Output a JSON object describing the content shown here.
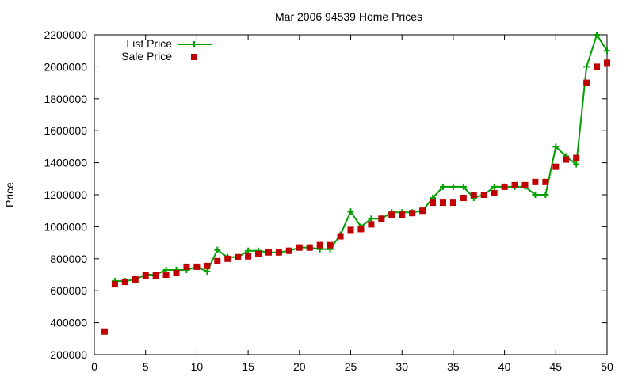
{
  "chart_data": {
    "type": "line",
    "title": "Mar 2006 94539 Home Prices",
    "xlabel": "",
    "ylabel": "Price",
    "xlim": [
      0,
      50
    ],
    "ylim": [
      200000,
      2200000
    ],
    "xticks": [
      0,
      5,
      10,
      15,
      20,
      25,
      30,
      35,
      40,
      45,
      50
    ],
    "yticks": [
      200000,
      400000,
      600000,
      800000,
      1000000,
      1200000,
      1400000,
      1600000,
      1800000,
      2000000,
      2200000
    ],
    "grid": false,
    "legend_position": "top-left",
    "series": [
      {
        "name": "List Price",
        "style": "line-with-plus-markers",
        "color": "#00a000",
        "x": [
          2,
          3,
          4,
          5,
          6,
          7,
          8,
          9,
          10,
          11,
          12,
          13,
          14,
          15,
          16,
          17,
          18,
          19,
          20,
          21,
          22,
          23,
          24,
          25,
          26,
          27,
          28,
          29,
          30,
          31,
          32,
          33,
          34,
          35,
          36,
          37,
          38,
          39,
          40,
          41,
          42,
          43,
          44,
          45,
          46,
          47,
          48,
          49,
          50
        ],
        "values": [
          660000,
          660000,
          670000,
          700000,
          700000,
          730000,
          730000,
          730000,
          750000,
          720000,
          855000,
          810000,
          810000,
          850000,
          850000,
          840000,
          840000,
          850000,
          870000,
          870000,
          860000,
          860000,
          950000,
          1095000,
          1000000,
          1050000,
          1050000,
          1090000,
          1090000,
          1090000,
          1100000,
          1180000,
          1250000,
          1250000,
          1250000,
          1180000,
          1200000,
          1250000,
          1250000,
          1250000,
          1250000,
          1200000,
          1200000,
          1500000,
          1440000,
          1390000,
          2000000,
          2200000,
          2100000
        ]
      },
      {
        "name": "Sale Price",
        "style": "square-markers",
        "color": "#c00000",
        "x": [
          1,
          2,
          3,
          4,
          5,
          6,
          7,
          8,
          9,
          10,
          11,
          12,
          13,
          14,
          15,
          16,
          17,
          18,
          19,
          20,
          21,
          22,
          23,
          24,
          25,
          26,
          27,
          28,
          29,
          30,
          31,
          32,
          33,
          34,
          35,
          36,
          37,
          38,
          39,
          40,
          41,
          42,
          43,
          44,
          45,
          46,
          47,
          48,
          49,
          50
        ],
        "values": [
          345000,
          640000,
          655000,
          670000,
          695000,
          695000,
          700000,
          710000,
          750000,
          750000,
          755000,
          785000,
          800000,
          810000,
          815000,
          830000,
          840000,
          840000,
          850000,
          870000,
          870000,
          885000,
          885000,
          940000,
          980000,
          985000,
          1015000,
          1050000,
          1075000,
          1075000,
          1085000,
          1100000,
          1150000,
          1150000,
          1150000,
          1180000,
          1200000,
          1200000,
          1210000,
          1250000,
          1260000,
          1260000,
          1280000,
          1280000,
          1375000,
          1420000,
          1430000,
          1900000,
          2000000,
          2025000
        ]
      }
    ]
  }
}
